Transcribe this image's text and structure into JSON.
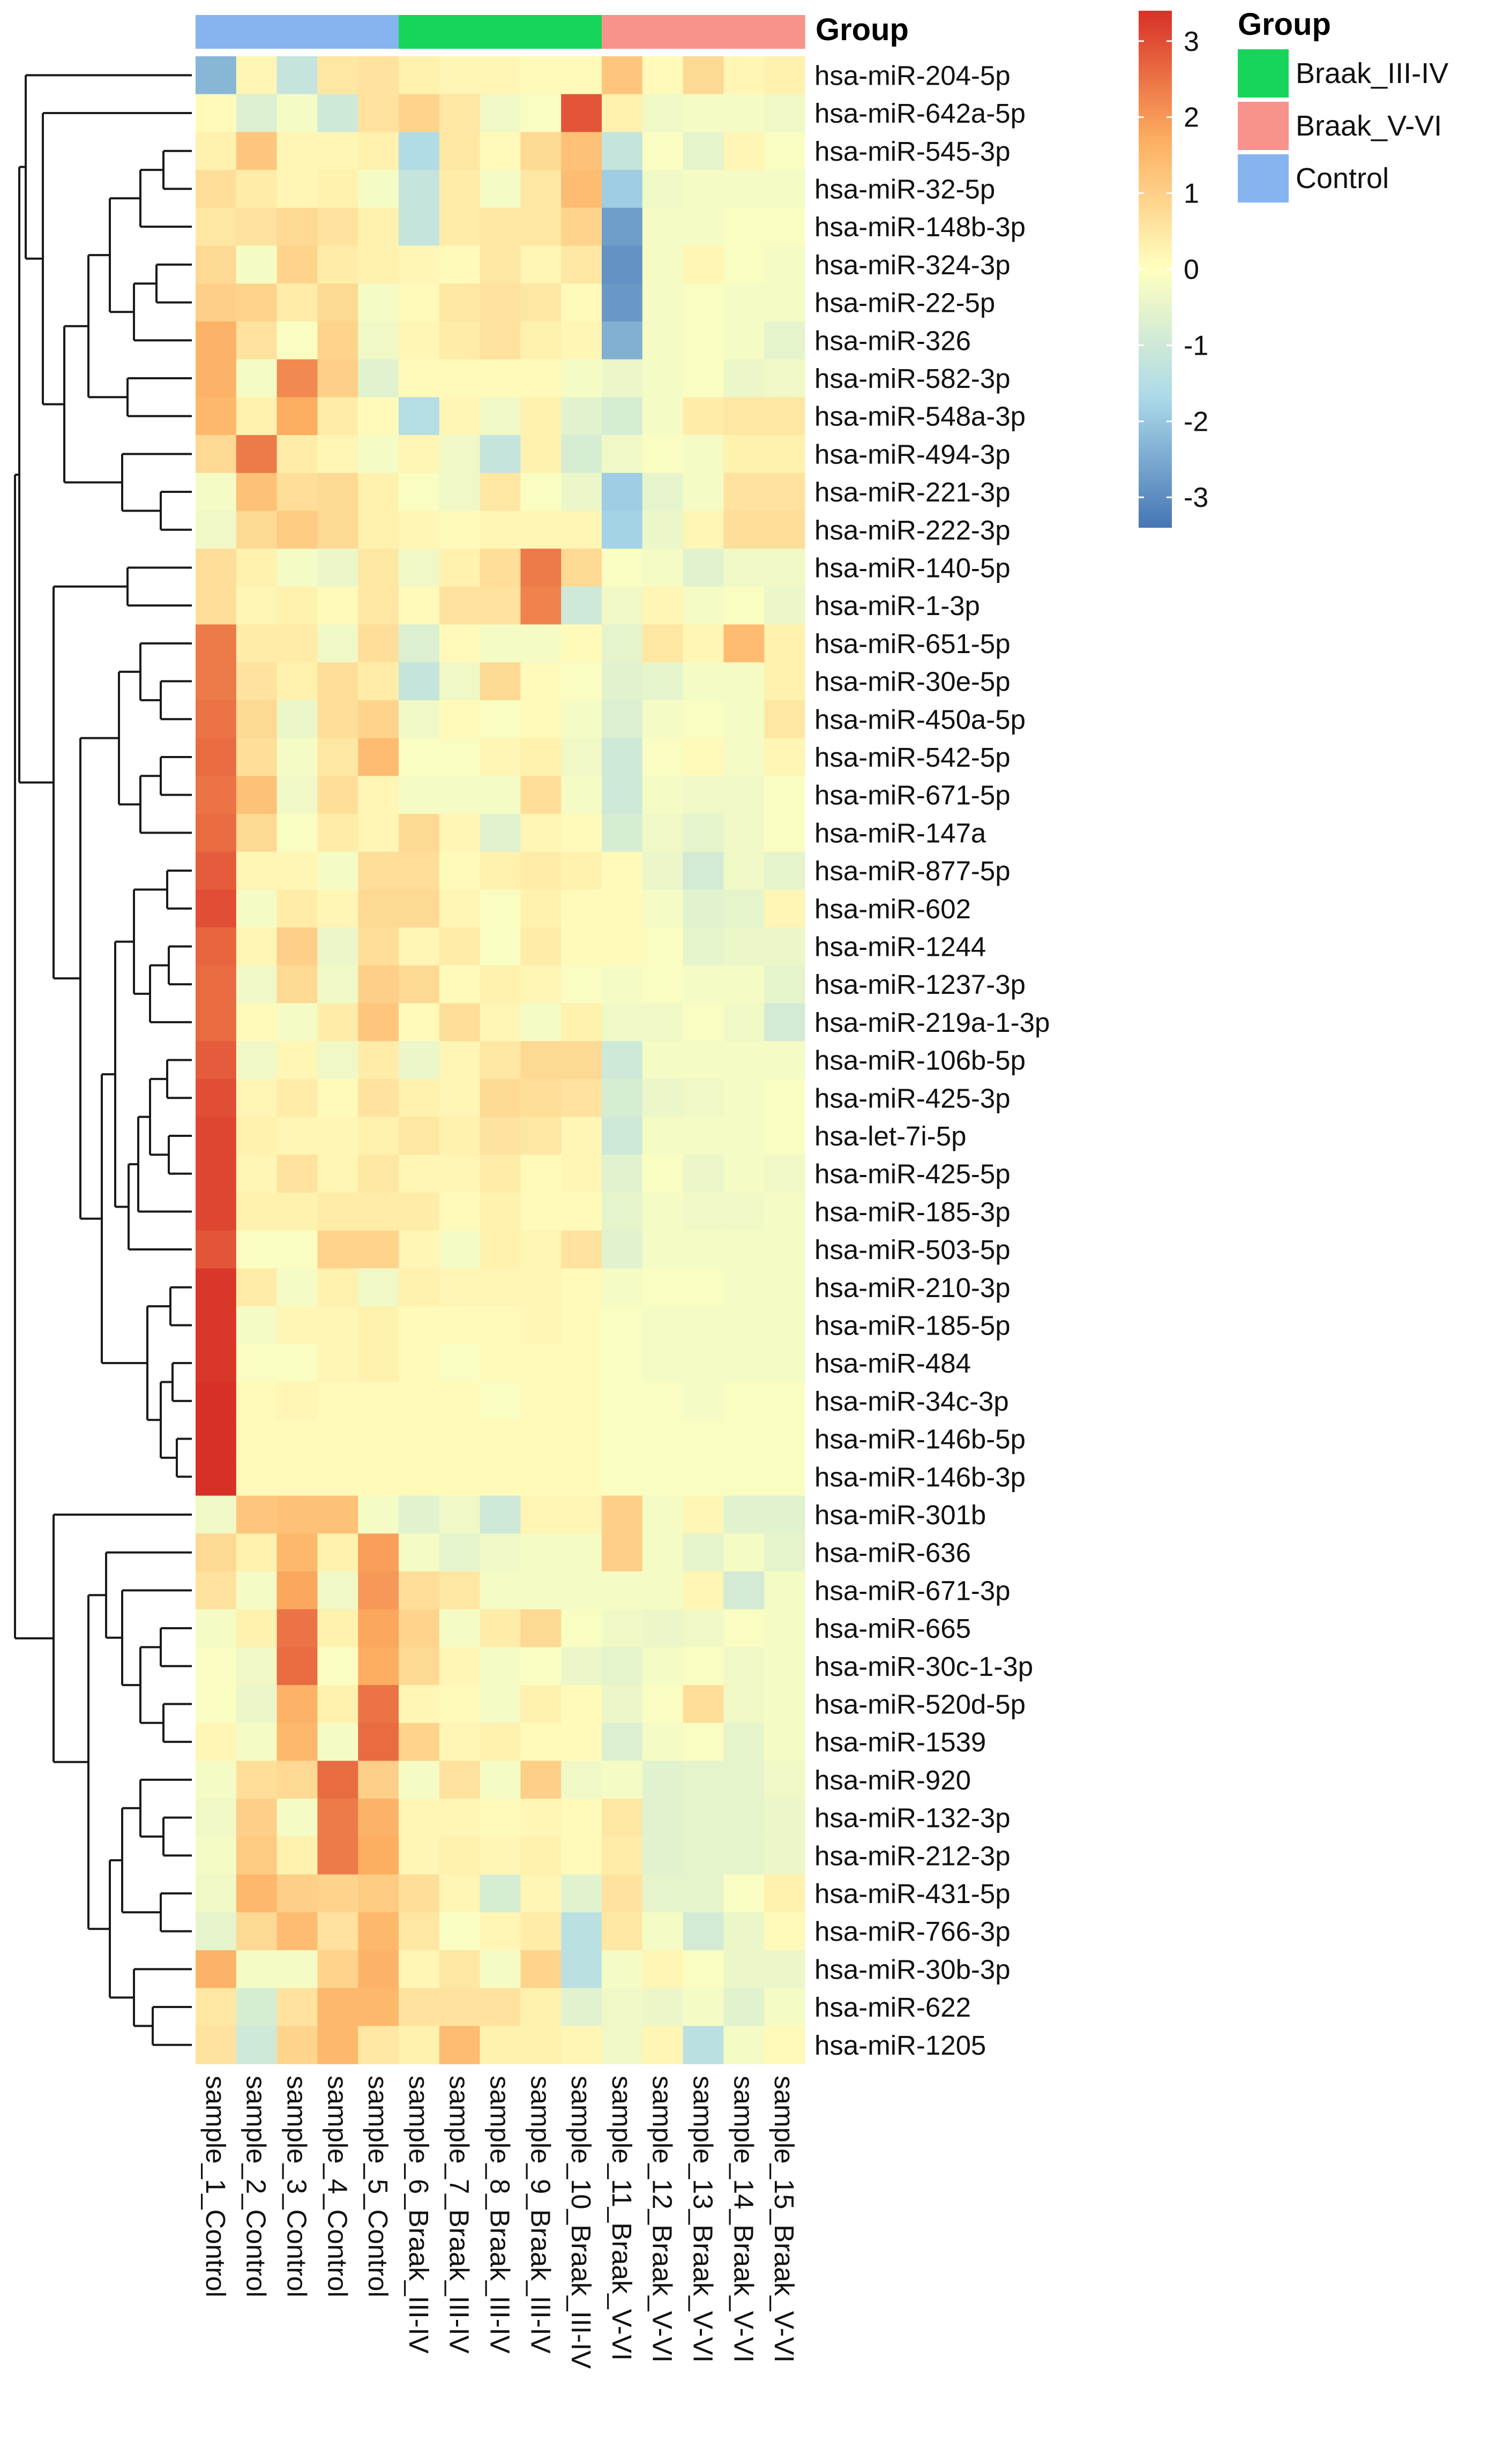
{
  "chart_data": {
    "type": "heatmap",
    "title": "",
    "group_annotation_label": "Group",
    "columns": [
      {
        "name": "sample_1_Control",
        "group": "Control"
      },
      {
        "name": "sample_2_Control",
        "group": "Control"
      },
      {
        "name": "sample_3_Control",
        "group": "Control"
      },
      {
        "name": "sample_4_Control",
        "group": "Control"
      },
      {
        "name": "sample_5_Control",
        "group": "Control"
      },
      {
        "name": "sample_6_Braak_III-IV",
        "group": "Braak_III-IV"
      },
      {
        "name": "sample_7_Braak_III-IV",
        "group": "Braak_III-IV"
      },
      {
        "name": "sample_8_Braak_III-IV",
        "group": "Braak_III-IV"
      },
      {
        "name": "sample_9_Braak_III-IV",
        "group": "Braak_III-IV"
      },
      {
        "name": "sample_10_Braak_III-IV",
        "group": "Braak_III-IV"
      },
      {
        "name": "sample_11_Braak_V-VI",
        "group": "Braak_V-VI"
      },
      {
        "name": "sample_12_Braak_V-VI",
        "group": "Braak_V-VI"
      },
      {
        "name": "sample_13_Braak_V-VI",
        "group": "Braak_V-VI"
      },
      {
        "name": "sample_14_Braak_V-VI",
        "group": "Braak_V-VI"
      },
      {
        "name": "sample_15_Braak_V-VI",
        "group": "Braak_V-VI"
      }
    ],
    "rows": [
      "hsa-miR-204-5p",
      "hsa-miR-642a-5p",
      "hsa-miR-545-3p",
      "hsa-miR-32-5p",
      "hsa-miR-148b-3p",
      "hsa-miR-324-3p",
      "hsa-miR-22-5p",
      "hsa-miR-326",
      "hsa-miR-582-3p",
      "hsa-miR-548a-3p",
      "hsa-miR-494-3p",
      "hsa-miR-221-3p",
      "hsa-miR-222-3p",
      "hsa-miR-140-5p",
      "hsa-miR-1-3p",
      "hsa-miR-651-5p",
      "hsa-miR-30e-5p",
      "hsa-miR-450a-5p",
      "hsa-miR-542-5p",
      "hsa-miR-671-5p",
      "hsa-miR-147a",
      "hsa-miR-877-5p",
      "hsa-miR-602",
      "hsa-miR-1244",
      "hsa-miR-1237-3p",
      "hsa-miR-219a-1-3p",
      "hsa-miR-106b-5p",
      "hsa-miR-425-3p",
      "hsa-let-7i-5p",
      "hsa-miR-425-5p",
      "hsa-miR-185-3p",
      "hsa-miR-503-5p",
      "hsa-miR-210-3p",
      "hsa-miR-185-5p",
      "hsa-miR-484",
      "hsa-miR-34c-3p",
      "hsa-miR-146b-5p",
      "hsa-miR-146b-3p",
      "hsa-miR-301b",
      "hsa-miR-636",
      "hsa-miR-671-3p",
      "hsa-miR-665",
      "hsa-miR-30c-1-3p",
      "hsa-miR-520d-5p",
      "hsa-miR-1539",
      "hsa-miR-920",
      "hsa-miR-132-3p",
      "hsa-miR-212-3p",
      "hsa-miR-431-5p",
      "hsa-miR-766-3p",
      "hsa-miR-30b-3p",
      "hsa-miR-622",
      "hsa-miR-1205"
    ],
    "values": [
      [
        -2.3,
        0.2,
        -1.2,
        0.5,
        0.6,
        0.3,
        0.2,
        0.2,
        0.1,
        0.1,
        1.2,
        0.1,
        0.8,
        0.2,
        0.3
      ],
      [
        0.1,
        -0.7,
        -0.2,
        -1.0,
        0.6,
        0.9,
        0.5,
        -0.3,
        -0.1,
        2.9,
        0.3,
        -0.3,
        -0.2,
        -0.2,
        -0.3
      ],
      [
        0.3,
        1.2,
        0.2,
        0.2,
        0.3,
        -1.6,
        0.5,
        0.1,
        0.8,
        1.3,
        -1.2,
        -0.1,
        -0.5,
        0.2,
        -0.1
      ],
      [
        0.7,
        0.4,
        0.2,
        0.3,
        -0.2,
        -1.2,
        0.4,
        -0.2,
        0.5,
        1.4,
        -1.9,
        -0.3,
        -0.2,
        -0.2,
        -0.2
      ],
      [
        0.5,
        0.6,
        0.8,
        0.6,
        0.3,
        -1.2,
        0.4,
        0.5,
        0.5,
        0.9,
        -2.7,
        -0.2,
        -0.2,
        -0.1,
        -0.1
      ],
      [
        0.8,
        -0.2,
        0.9,
        0.4,
        0.3,
        0.2,
        0.1,
        0.5,
        0.2,
        0.5,
        -2.9,
        -0.2,
        0.2,
        -0.1,
        -0.2
      ],
      [
        1.0,
        0.9,
        0.4,
        0.8,
        -0.2,
        0.1,
        0.5,
        0.6,
        0.5,
        0.1,
        -2.8,
        -0.2,
        -0.1,
        -0.2,
        -0.2
      ],
      [
        1.6,
        0.6,
        -0.1,
        0.9,
        -0.3,
        0.2,
        0.4,
        0.6,
        0.3,
        0.2,
        -2.4,
        -0.2,
        -0.1,
        -0.2,
        -0.5
      ],
      [
        1.6,
        -0.2,
        2.2,
        1.0,
        -0.6,
        0.1,
        0.1,
        0.1,
        0.1,
        -0.2,
        -0.4,
        -0.2,
        -0.1,
        -0.4,
        -0.3
      ],
      [
        1.5,
        0.3,
        1.7,
        0.4,
        0.1,
        -1.5,
        0.2,
        -0.3,
        0.3,
        -0.6,
        -0.8,
        -0.2,
        0.4,
        0.5,
        0.5
      ],
      [
        0.8,
        2.4,
        0.4,
        0.2,
        -0.2,
        0.2,
        -0.3,
        -1.2,
        0.3,
        -0.8,
        -0.3,
        -0.1,
        -0.2,
        0.3,
        0.3
      ],
      [
        -0.2,
        1.3,
        0.7,
        0.8,
        0.3,
        -0.1,
        -0.3,
        0.5,
        -0.1,
        -0.4,
        -1.9,
        -0.5,
        -0.2,
        0.6,
        0.6
      ],
      [
        -0.3,
        0.8,
        1.1,
        0.8,
        0.3,
        0.2,
        0.1,
        0.2,
        0.2,
        0.2,
        -1.8,
        -0.4,
        0.2,
        0.7,
        0.7
      ],
      [
        0.7,
        0.3,
        -0.2,
        -0.4,
        0.5,
        -0.3,
        0.3,
        0.7,
        2.4,
        0.8,
        -0.1,
        -0.2,
        -0.6,
        -0.3,
        -0.3
      ],
      [
        0.7,
        0.2,
        0.3,
        0.1,
        0.5,
        0.1,
        0.6,
        0.6,
        2.3,
        -1.0,
        -0.3,
        0.2,
        -0.2,
        -0.1,
        -0.4
      ],
      [
        2.4,
        0.4,
        0.4,
        -0.3,
        0.7,
        -0.7,
        0.1,
        -0.2,
        -0.2,
        0.1,
        -0.5,
        0.5,
        0.2,
        1.4,
        0.3
      ],
      [
        2.4,
        0.6,
        0.3,
        0.7,
        0.4,
        -1.2,
        -0.3,
        0.8,
        0.1,
        -0.1,
        -0.6,
        -0.5,
        -0.2,
        -0.2,
        0.3
      ],
      [
        2.5,
        0.8,
        -0.4,
        0.7,
        0.9,
        -0.3,
        0.1,
        -0.1,
        0.1,
        -0.2,
        -0.7,
        -0.2,
        -0.1,
        -0.2,
        0.5
      ],
      [
        2.6,
        0.7,
        -0.2,
        0.5,
        1.4,
        -0.1,
        -0.1,
        0.2,
        0.3,
        -0.3,
        -1.0,
        -0.1,
        0.1,
        -0.2,
        0.2
      ],
      [
        2.5,
        1.3,
        -0.3,
        0.7,
        0.2,
        -0.2,
        -0.2,
        -0.2,
        0.7,
        -0.2,
        -1.0,
        -0.2,
        -0.3,
        -0.3,
        -0.1
      ],
      [
        2.6,
        0.8,
        -0.1,
        0.4,
        0.2,
        0.8,
        0.2,
        -0.6,
        0.2,
        0.1,
        -0.8,
        -0.3,
        -0.5,
        -0.3,
        -0.1
      ],
      [
        2.8,
        0.2,
        0.2,
        -0.2,
        0.7,
        0.7,
        0.1,
        0.3,
        0.4,
        0.3,
        0.1,
        -0.4,
        -0.9,
        -0.3,
        -0.5
      ],
      [
        3.0,
        -0.2,
        0.4,
        0.2,
        0.8,
        0.8,
        0.2,
        -0.1,
        0.3,
        0.1,
        0.1,
        -0.2,
        -0.6,
        -0.5,
        0.2
      ],
      [
        2.7,
        0.2,
        1.0,
        -0.4,
        0.7,
        0.2,
        0.4,
        -0.1,
        0.4,
        0.1,
        0.1,
        -0.1,
        -0.5,
        -0.4,
        -0.4
      ],
      [
        2.6,
        -0.3,
        0.8,
        -0.3,
        1.0,
        0.8,
        0.1,
        0.3,
        0.2,
        -0.1,
        -0.2,
        -0.1,
        -0.2,
        -0.2,
        -0.5
      ],
      [
        2.6,
        0.1,
        -0.2,
        0.4,
        1.2,
        0.1,
        0.7,
        0.2,
        -0.2,
        0.3,
        -0.3,
        -0.3,
        -0.1,
        -0.3,
        -0.9
      ],
      [
        2.8,
        -0.3,
        0.2,
        -0.3,
        0.4,
        -0.4,
        0.2,
        0.5,
        0.8,
        0.8,
        -1.0,
        -0.2,
        -0.2,
        -0.2,
        -0.2
      ],
      [
        3.0,
        0.2,
        0.4,
        0.1,
        0.6,
        0.3,
        0.2,
        0.8,
        0.7,
        0.6,
        -0.8,
        -0.4,
        -0.3,
        -0.2,
        -0.1
      ],
      [
        3.1,
        0.3,
        0.2,
        0.2,
        0.3,
        0.5,
        0.3,
        0.6,
        0.5,
        0.2,
        -1.0,
        -0.2,
        -0.2,
        -0.2,
        -0.1
      ],
      [
        3.1,
        0.2,
        0.6,
        0.2,
        0.5,
        0.2,
        0.2,
        0.4,
        0.1,
        0.2,
        -0.6,
        -0.1,
        -0.4,
        -0.2,
        -0.3
      ],
      [
        3.1,
        0.3,
        0.3,
        0.4,
        0.4,
        0.4,
        0.1,
        0.3,
        0.1,
        0.1,
        -0.5,
        -0.2,
        -0.3,
        -0.3,
        -0.2
      ],
      [
        2.9,
        -0.1,
        -0.1,
        0.9,
        0.9,
        0.2,
        -0.2,
        0.3,
        0.2,
        0.6,
        -0.6,
        -0.2,
        -0.2,
        -0.2,
        -0.2
      ],
      [
        3.3,
        0.4,
        -0.2,
        0.3,
        -0.3,
        0.3,
        0.2,
        0.2,
        0.2,
        0.1,
        -0.2,
        -0.1,
        -0.1,
        -0.2,
        -0.2
      ],
      [
        3.3,
        -0.2,
        0.2,
        0.2,
        0.3,
        0.1,
        0.1,
        0.1,
        0.2,
        0.1,
        -0.1,
        -0.2,
        -0.2,
        -0.2,
        -0.2
      ],
      [
        3.3,
        -0.1,
        -0.1,
        0.2,
        0.3,
        0.1,
        -0.1,
        0.1,
        0.1,
        0.1,
        -0.1,
        -0.2,
        -0.2,
        -0.2,
        -0.2
      ],
      [
        3.4,
        0.1,
        0.2,
        0.1,
        0.1,
        0.1,
        0.1,
        -0.1,
        0.1,
        0.1,
        -0.1,
        -0.1,
        -0.2,
        -0.1,
        -0.1
      ],
      [
        3.4,
        0.1,
        0.1,
        0.1,
        0.1,
        0.1,
        0.1,
        0.1,
        0.1,
        0.1,
        -0.1,
        -0.1,
        -0.1,
        -0.1,
        -0.1
      ],
      [
        3.4,
        0.1,
        0.1,
        0.1,
        0.1,
        0.1,
        0.1,
        0.1,
        0.1,
        0.1,
        -0.1,
        -0.1,
        -0.1,
        -0.1,
        -0.1
      ],
      [
        -0.3,
        1.2,
        1.3,
        1.3,
        -0.2,
        -0.6,
        -0.3,
        -1.0,
        0.2,
        0.2,
        1.0,
        -0.2,
        0.2,
        -0.6,
        -0.6
      ],
      [
        0.8,
        0.3,
        1.5,
        0.3,
        1.9,
        -0.2,
        -0.5,
        -0.3,
        -0.2,
        -0.2,
        1.0,
        -0.2,
        -0.5,
        -0.2,
        -0.5
      ],
      [
        0.6,
        -0.2,
        1.8,
        -0.3,
        2.0,
        0.7,
        0.5,
        -0.2,
        -0.2,
        -0.2,
        -0.2,
        -0.2,
        0.2,
        -0.9,
        -0.2
      ],
      [
        -0.2,
        0.3,
        2.5,
        0.3,
        1.8,
        0.9,
        -0.2,
        0.4,
        0.8,
        -0.1,
        -0.3,
        -0.4,
        -0.3,
        -0.1,
        -0.2
      ],
      [
        -0.1,
        -0.3,
        2.6,
        -0.1,
        1.7,
        0.8,
        0.2,
        -0.2,
        -0.1,
        -0.4,
        -0.5,
        -0.2,
        -0.1,
        -0.3,
        -0.2
      ],
      [
        -0.1,
        -0.4,
        1.6,
        0.3,
        2.5,
        0.2,
        0.1,
        -0.2,
        0.3,
        0.1,
        -0.4,
        -0.1,
        0.7,
        -0.3,
        -0.2
      ],
      [
        0.2,
        -0.2,
        1.5,
        -0.2,
        2.6,
        0.9,
        0.2,
        0.3,
        0.1,
        0.1,
        -0.7,
        -0.2,
        -0.1,
        -0.5,
        -0.2
      ],
      [
        -0.2,
        0.7,
        0.8,
        2.6,
        1.0,
        -0.2,
        0.6,
        -0.2,
        1.0,
        -0.3,
        -0.2,
        -0.6,
        -0.5,
        -0.5,
        -0.3
      ],
      [
        -0.3,
        1.0,
        -0.2,
        2.4,
        1.6,
        0.2,
        0.2,
        0.1,
        0.2,
        0.1,
        0.5,
        -0.6,
        -0.5,
        -0.5,
        -0.4
      ],
      [
        -0.2,
        1.1,
        0.3,
        2.4,
        1.7,
        0.2,
        0.3,
        0.2,
        0.3,
        0.1,
        0.4,
        -0.6,
        -0.5,
        -0.5,
        -0.4
      ],
      [
        -0.3,
        1.5,
        1.0,
        0.9,
        1.1,
        0.7,
        0.2,
        -0.8,
        0.2,
        -0.6,
        0.6,
        -0.5,
        -0.5,
        -0.1,
        0.3
      ],
      [
        -0.5,
        0.8,
        1.4,
        0.6,
        1.5,
        0.5,
        -0.1,
        0.2,
        0.4,
        -1.4,
        0.5,
        -0.2,
        -0.9,
        -0.4,
        0.1
      ],
      [
        1.6,
        -0.2,
        -0.2,
        0.9,
        1.6,
        0.2,
        0.5,
        -0.2,
        0.9,
        -1.4,
        -0.2,
        0.2,
        -0.1,
        -0.4,
        -0.4
      ],
      [
        0.5,
        -0.8,
        0.6,
        1.5,
        1.5,
        0.6,
        0.6,
        0.6,
        0.3,
        -0.6,
        -0.3,
        -0.4,
        -0.2,
        -0.6,
        -0.2
      ],
      [
        0.6,
        -1.0,
        0.9,
        1.5,
        0.5,
        0.3,
        1.4,
        0.3,
        0.3,
        0.2,
        -0.3,
        0.2,
        -1.4,
        -0.2,
        0.1
      ]
    ],
    "color_scale": {
      "min": -3.4,
      "max": 3.4,
      "stops": [
        {
          "value": -3.4,
          "color": "#4575b4"
        },
        {
          "value": -1.7,
          "color": "#abd9e9"
        },
        {
          "value": 0,
          "color": "#ffffbf"
        },
        {
          "value": 1.7,
          "color": "#fdae61"
        },
        {
          "value": 3.4,
          "color": "#d73027"
        }
      ],
      "ticks": [
        3,
        2,
        1,
        0,
        -1,
        -2,
        -3
      ],
      "tick_labels": [
        "3",
        "2",
        "1",
        "0",
        "-1",
        "-2",
        "-3"
      ]
    },
    "legend": {
      "title": "Group",
      "items": [
        {
          "label": "Braak_III-IV",
          "color": "#17d55a"
        },
        {
          "label": "Braak_V-VI",
          "color": "#f7938c"
        },
        {
          "label": "Control",
          "color": "#86b4ef"
        }
      ]
    },
    "row_dendrogram": "shown (left)",
    "column_dendrogram": "none"
  }
}
